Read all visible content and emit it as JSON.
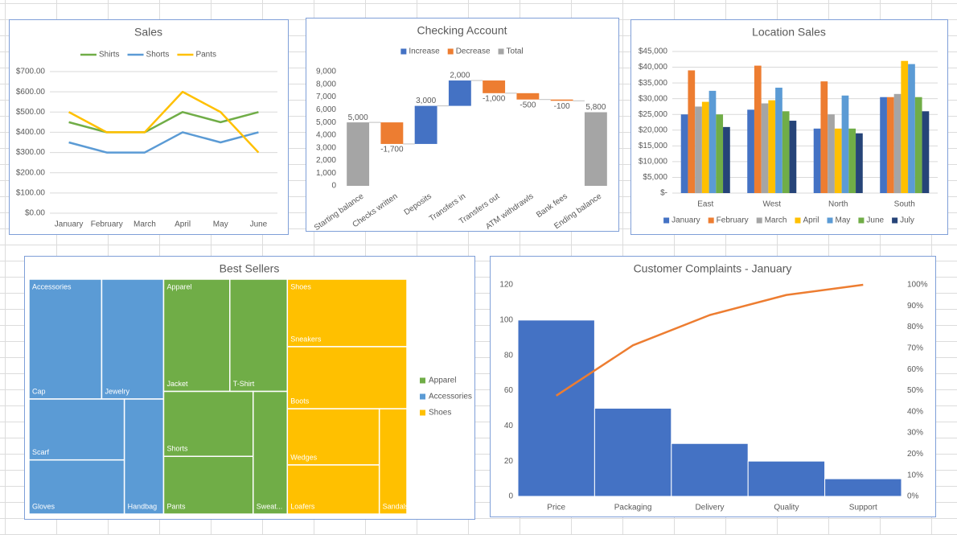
{
  "chart_data": [
    {
      "type": "line",
      "title": "Sales",
      "categories": [
        "January",
        "February",
        "March",
        "April",
        "May",
        "June"
      ],
      "series": [
        {
          "name": "Shirts",
          "color": "#70ad47",
          "values": [
            450,
            400,
            400,
            500,
            450,
            500
          ]
        },
        {
          "name": "Shorts",
          "color": "#5b9bd5",
          "values": [
            350,
            300,
            300,
            400,
            350,
            400
          ]
        },
        {
          "name": "Pants",
          "color": "#ffc000",
          "values": [
            500,
            400,
            400,
            600,
            500,
            300
          ]
        }
      ],
      "ylim": [
        0,
        700
      ],
      "yticks": [
        {
          "value": 0,
          "label": "$0.00"
        },
        {
          "value": 100,
          "label": "$100.00"
        },
        {
          "value": 200,
          "label": "$200.00"
        },
        {
          "value": 300,
          "label": "$300.00"
        },
        {
          "value": 400,
          "label": "$400.00"
        },
        {
          "value": 500,
          "label": "$500.00"
        },
        {
          "value": 600,
          "label": "$600.00"
        },
        {
          "value": 700,
          "label": "$700.00"
        }
      ],
      "grid": true,
      "legend": "top"
    },
    {
      "type": "waterfall",
      "title": "Checking Account",
      "categories": [
        "Starting balance",
        "Checks written",
        "Deposits",
        "Transfers in",
        "Transfers out",
        "ATM withdrawls",
        "Bank fees",
        "Ending balance"
      ],
      "values": [
        5000,
        -1700,
        3000,
        2000,
        -1000,
        -500,
        -100,
        5800
      ],
      "value_labels": [
        "5,000",
        "-1,700",
        "3,000",
        "2,000",
        "-1,000",
        "-500",
        "-100",
        "5,800"
      ],
      "totals": [
        true,
        false,
        false,
        false,
        false,
        false,
        false,
        true
      ],
      "legend_items": [
        {
          "name": "Increase",
          "color": "#4472c4"
        },
        {
          "name": "Decrease",
          "color": "#ed7d31"
        },
        {
          "name": "Total",
          "color": "#a5a5a5"
        }
      ],
      "ylim": [
        0,
        9000
      ],
      "yticks": [
        0,
        {
          "value": 1000,
          "label": "1,000"
        },
        {
          "value": 2000,
          "label": "2,000"
        },
        {
          "value": 3000,
          "label": "3,000"
        },
        {
          "value": 4000,
          "label": "4,000"
        },
        {
          "value": 5000,
          "label": "5,000"
        },
        {
          "value": 6000,
          "label": "6,000"
        },
        {
          "value": 7000,
          "label": "7,000"
        },
        {
          "value": 8000,
          "label": "8,000"
        },
        {
          "value": 9000,
          "label": "9,000"
        }
      ],
      "grid": false,
      "legend": "top"
    },
    {
      "type": "bar",
      "title": "Location Sales",
      "categories": [
        "East",
        "West",
        "North",
        "South"
      ],
      "series": [
        {
          "name": "January",
          "color": "#4472c4",
          "values": [
            25000,
            26500,
            20500,
            30500
          ]
        },
        {
          "name": "February",
          "color": "#ed7d31",
          "values": [
            39000,
            40500,
            35500,
            30500
          ]
        },
        {
          "name": "March",
          "color": "#a5a5a5",
          "values": [
            27500,
            28500,
            25000,
            31500
          ]
        },
        {
          "name": "April",
          "color": "#ffc000",
          "values": [
            29000,
            29500,
            20500,
            42000
          ]
        },
        {
          "name": "May",
          "color": "#5b9bd5",
          "values": [
            32500,
            33500,
            31000,
            41000
          ]
        },
        {
          "name": "June",
          "color": "#70ad47",
          "values": [
            25000,
            26000,
            20500,
            30500
          ]
        },
        {
          "name": "July",
          "color": "#264478",
          "values": [
            21000,
            23000,
            19000,
            26000
          ]
        }
      ],
      "ylim": [
        0,
        45000
      ],
      "yticks": [
        {
          "value": 0,
          "label": "$-"
        },
        {
          "value": 5000,
          "label": "$5,000"
        },
        {
          "value": 10000,
          "label": "$10,000"
        },
        {
          "value": 15000,
          "label": "$15,000"
        },
        {
          "value": 20000,
          "label": "$20,000"
        },
        {
          "value": 25000,
          "label": "$25,000"
        },
        {
          "value": 30000,
          "label": "$30,000"
        },
        {
          "value": 35000,
          "label": "$35,000"
        },
        {
          "value": 40000,
          "label": "$40,000"
        },
        {
          "value": 45000,
          "label": "$45,000"
        }
      ],
      "grid": true,
      "legend": "bottom"
    },
    {
      "type": "treemap",
      "title": "Best Sellers",
      "groups": [
        {
          "name": "Apparel",
          "color": "#70ad47",
          "items": [
            {
              "name": "Jacket",
              "value": 23
            },
            {
              "name": "T-Shirt",
              "value": 20
            },
            {
              "name": "Shorts",
              "value": 18
            },
            {
              "name": "Pants",
              "value": 16
            },
            {
              "name": "Sweat...",
              "value": 13
            }
          ]
        },
        {
          "name": "Accessories",
          "color": "#5b9bd5",
          "items": [
            {
              "name": "Cap",
              "value": 27
            },
            {
              "name": "Jewelry",
              "value": 23
            },
            {
              "name": "Scarf",
              "value": 18
            },
            {
              "name": "Gloves",
              "value": 16
            },
            {
              "name": "Handbag",
              "value": 14
            }
          ]
        },
        {
          "name": "Shoes",
          "color": "#ffc000",
          "items": [
            {
              "name": "Sneakers",
              "value": 25
            },
            {
              "name": "Boots",
              "value": 23
            },
            {
              "name": "Wedges",
              "value": 16
            },
            {
              "name": "Loafers",
              "value": 14
            },
            {
              "name": "Sandals",
              "value": 9
            }
          ]
        }
      ],
      "legend": "right"
    },
    {
      "type": "pareto",
      "title": "Customer Complaints - January",
      "categories": [
        "Price",
        "Packaging",
        "Delivery",
        "Quality",
        "Support"
      ],
      "series": [
        {
          "color": "#4472c4",
          "values": [
            100,
            50,
            30,
            20,
            10
          ]
        },
        {
          "color": "#ed7d31",
          "values": [
            47.6,
            71.4,
            85.7,
            95.2,
            100
          ],
          "axis": "y2"
        }
      ],
      "ylim": [
        0,
        120
      ],
      "yticks": [
        0,
        20,
        40,
        60,
        80,
        100,
        120
      ],
      "y2lim": [
        0,
        100
      ],
      "y2ticks": [
        {
          "value": 0,
          "label": "0%"
        },
        {
          "value": 10,
          "label": "10%"
        },
        {
          "value": 20,
          "label": "20%"
        },
        {
          "value": 30,
          "label": "30%"
        },
        {
          "value": 40,
          "label": "40%"
        },
        {
          "value": 50,
          "label": "50%"
        },
        {
          "value": 60,
          "label": "60%"
        },
        {
          "value": 70,
          "label": "70%"
        },
        {
          "value": 80,
          "label": "80%"
        },
        {
          "value": 90,
          "label": "90%"
        },
        {
          "value": 100,
          "label": "100%"
        }
      ],
      "grid": false
    }
  ]
}
